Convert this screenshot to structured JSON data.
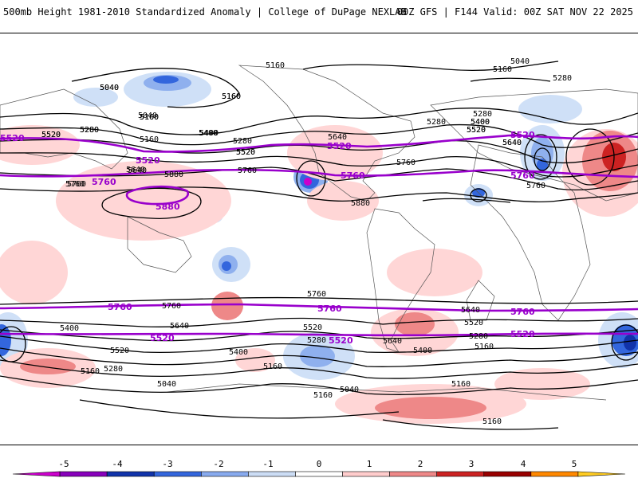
{
  "header": {
    "title": "500mb Height 1981-2010 Standardized Anomaly | College of DuPage NEXLAB",
    "run_info": "00Z GFS | F144 Valid: 00Z SAT NOV 22 2025"
  },
  "colors": {
    "purple_contour": "#9900cc",
    "black_contour": "#000000",
    "land_outline": "#555555"
  },
  "colorbar": {
    "ticks": [
      "-5",
      "-4",
      "-3",
      "-2",
      "-1",
      "0",
      "1",
      "2",
      "3",
      "4",
      "5"
    ],
    "colors": [
      "#cc00cc",
      "#8800bb",
      "#1133aa",
      "#3366dd",
      "#88aaee",
      "#ccddf5",
      "#ffffff",
      "#ffcccc",
      "#ee8888",
      "#cc2222",
      "#990000",
      "#ff8800",
      "#ffcc22"
    ]
  },
  "map": {
    "black_labels": [
      "5160",
      "5040",
      "5160",
      "5280",
      "5040",
      "5160",
      "5280",
      "5400",
      "5160",
      "5280",
      "5520",
      "5640",
      "5760",
      "5880",
      "5040",
      "5160",
      "5520",
      "5400",
      "5280",
      "5520",
      "5640",
      "5760",
      "5880",
      "5640",
      "5280",
      "5400",
      "5520",
      "5640",
      "5760",
      "5760",
      "5640",
      "5760",
      "5520",
      "5400",
      "5280",
      "5160",
      "5040",
      "5160",
      "5520",
      "5760",
      "5640",
      "5400",
      "5520",
      "5280",
      "5160",
      "5040",
      "5160",
      "5400",
      "5640",
      "5520",
      "5280",
      "5160",
      "5040",
      "5160",
      "5760",
      "5640",
      "5400",
      "5520",
      "5280",
      "5160",
      "5160"
    ],
    "purple_labels": [
      "5520",
      "5520",
      "5760",
      "5880",
      "5520",
      "5760",
      "5520",
      "5760",
      "5760",
      "5760",
      "5520",
      "5760",
      "5520",
      "5520"
    ]
  }
}
